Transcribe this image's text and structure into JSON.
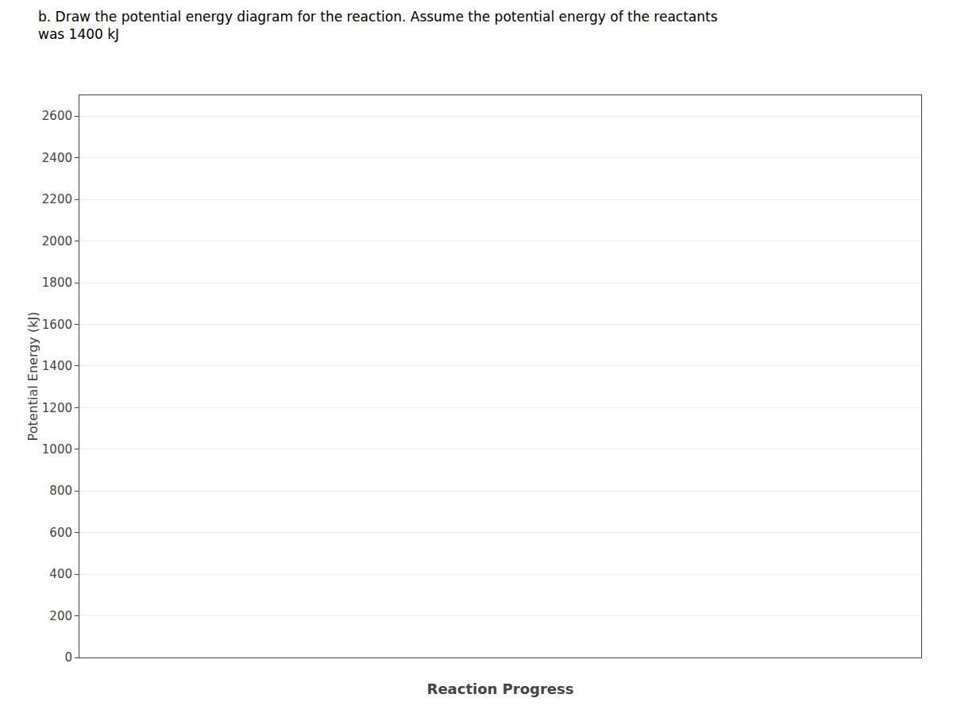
{
  "chart_data": {
    "type": "line",
    "title": "b. Draw the potential energy diagram for the reaction. Assume the potential energy of the reactants",
    "subtitle": "was 1400 kJ",
    "xlabel": "Reaction Progress",
    "ylabel": "Potential Energy (kJ)",
    "ylim": [
      0,
      2700
    ],
    "yticks": [
      0,
      200,
      400,
      600,
      800,
      1000,
      1200,
      1400,
      1600,
      1800,
      2000,
      2200,
      2400,
      2600
    ],
    "grid": true,
    "tick_labels": "y"
  }
}
